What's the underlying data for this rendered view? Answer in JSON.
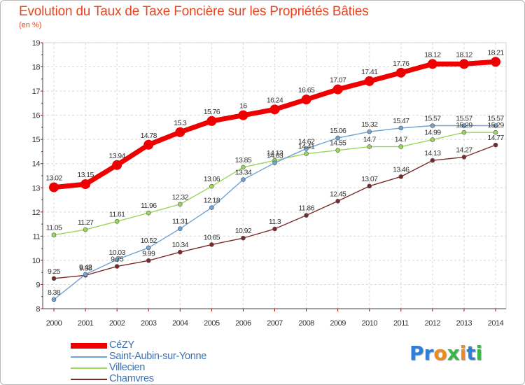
{
  "header": {
    "title": "Evolution du Taux de Taxe Foncière sur les Propriétés Bâties",
    "subtitle": "(en %)"
  },
  "logo": {
    "text": "Proxiti",
    "letters": [
      "P",
      "r",
      "o",
      "x",
      "i",
      "t",
      "i"
    ],
    "colors": [
      "#2e7fd8",
      "#2e7fd8",
      "#f08a1c",
      "#3bb54a",
      "#f08a1c",
      "#2e7fd8",
      "#3bb54a"
    ]
  },
  "chart_data": {
    "type": "line",
    "title": "Evolution du Taux de Taxe Foncière sur les Propriétés Bâties",
    "ylabel": "(en %)",
    "x": [
      "2000",
      "2001",
      "2002",
      "2003",
      "2004",
      "2005",
      "2006",
      "2007",
      "2008",
      "2009",
      "2010",
      "2011",
      "2012",
      "2013",
      "2014"
    ],
    "ylim": [
      8,
      19
    ],
    "yticks": [
      "8",
      "9",
      "10",
      "11",
      "12",
      "13",
      "14",
      "15",
      "16",
      "17",
      "18",
      "19"
    ],
    "grid": true,
    "legend_position": "bottom-left",
    "series": [
      {
        "name": "CéZY",
        "color": "#ee0000",
        "values": [
          13.02,
          13.15,
          13.94,
          14.78,
          15.3,
          15.76,
          16,
          16.24,
          16.65,
          17.07,
          17.41,
          17.76,
          18.12,
          18.12,
          18.21
        ],
        "labels": [
          "13.02",
          "13.15",
          "13.94",
          "14.78",
          "15.3",
          "15.76",
          "16",
          "16.24",
          "16.65",
          "17.07",
          "17.41",
          "17.76",
          "18.12",
          "18.12",
          "18.21"
        ]
      },
      {
        "name": "Saint-Aubin-sur-Yonne",
        "color": "#6fa3d3",
        "values": [
          8.38,
          9.42,
          10.03,
          10.52,
          11.31,
          12.18,
          13.34,
          14.03,
          14.62,
          15.06,
          15.32,
          15.47,
          15.57,
          15.57,
          15.57
        ],
        "labels": [
          "8.38",
          "9.42",
          "10.03",
          "10.52",
          "11.31",
          "12.18",
          "13.34",
          "14.03",
          "14.62",
          "15.06",
          "15.32",
          "15.47",
          "15.57",
          "15.57",
          "15.57"
        ]
      },
      {
        "name": "Villecien",
        "color": "#9ad65a",
        "values": [
          11.05,
          11.27,
          11.61,
          11.96,
          12.32,
          13.06,
          13.85,
          14.13,
          14.41,
          14.55,
          14.7,
          14.7,
          14.99,
          15.29,
          15.29
        ],
        "labels": [
          "11.05",
          "11.27",
          "11.61",
          "11.96",
          "12.32",
          "13.06",
          "13.85",
          "14.13",
          "14.41",
          "14.55",
          "14.7",
          "14.7",
          "14.99",
          "15.29",
          "15.29"
        ]
      },
      {
        "name": "Chamvres",
        "color": "#7a2a2a",
        "values": [
          9.25,
          9.38,
          9.75,
          9.99,
          10.34,
          10.65,
          10.92,
          11.3,
          11.86,
          12.45,
          13.07,
          13.46,
          14.13,
          14.27,
          14.77
        ],
        "labels": [
          "9.25",
          "9.38",
          "9.75",
          "9.99",
          "10.34",
          "10.65",
          "10.92",
          "11.3",
          "11.86",
          "12.45",
          "13.07",
          "13.46",
          "14.13",
          "14.27",
          "14.77"
        ]
      }
    ]
  }
}
